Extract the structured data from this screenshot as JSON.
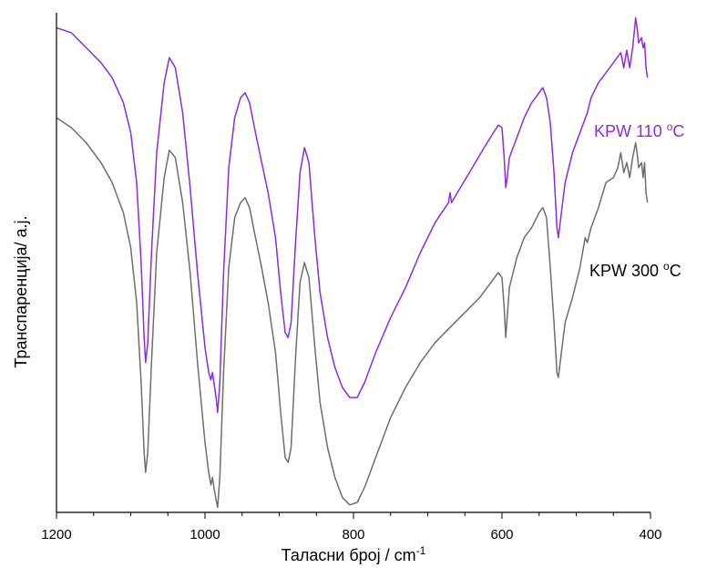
{
  "chart_data": {
    "type": "line",
    "title": "",
    "xlabel": "Таласни број / cm",
    "xlabel_sup": "-1",
    "ylabel": "Транспаренција/ а.ј.",
    "xlim": [
      1200,
      400
    ],
    "x_reversed": true,
    "ylim": [
      0,
      100
    ],
    "y_ticks_shown": false,
    "grid": false,
    "x_ticks": [
      1200,
      1000,
      800,
      600,
      400
    ],
    "x_tick_labels": [
      "1200",
      "1000",
      "800",
      "600",
      "400"
    ],
    "series": [
      {
        "name": "KPW 110 ",
        "label_sup": "o",
        "label_suffix": "C",
        "color": "#8b2be2",
        "points": [
          [
            1200,
            97
          ],
          [
            1180,
            96
          ],
          [
            1160,
            93
          ],
          [
            1140,
            90
          ],
          [
            1125,
            87
          ],
          [
            1110,
            82
          ],
          [
            1100,
            76
          ],
          [
            1092,
            66
          ],
          [
            1086,
            50
          ],
          [
            1082,
            35
          ],
          [
            1080,
            30
          ],
          [
            1077,
            34
          ],
          [
            1072,
            52
          ],
          [
            1065,
            72
          ],
          [
            1055,
            86
          ],
          [
            1048,
            91
          ],
          [
            1040,
            89
          ],
          [
            1030,
            80
          ],
          [
            1020,
            65
          ],
          [
            1010,
            48
          ],
          [
            1000,
            33
          ],
          [
            995,
            28
          ],
          [
            992,
            26.5
          ],
          [
            990,
            28
          ],
          [
            988,
            26
          ],
          [
            985,
            23
          ],
          [
            983,
            20
          ],
          [
            980,
            26
          ],
          [
            975,
            48
          ],
          [
            968,
            69
          ],
          [
            960,
            79
          ],
          [
            952,
            83
          ],
          [
            946,
            84
          ],
          [
            940,
            82
          ],
          [
            932,
            76
          ],
          [
            925,
            71
          ],
          [
            915,
            64
          ],
          [
            905,
            55
          ],
          [
            898,
            44
          ],
          [
            892,
            36
          ],
          [
            888,
            35
          ],
          [
            884,
            38
          ],
          [
            878,
            54
          ],
          [
            872,
            68
          ],
          [
            866,
            73
          ],
          [
            860,
            70
          ],
          [
            852,
            55
          ],
          [
            845,
            44
          ],
          [
            835,
            35
          ],
          [
            825,
            29
          ],
          [
            815,
            25
          ],
          [
            805,
            23
          ],
          [
            795,
            23
          ],
          [
            785,
            26
          ],
          [
            770,
            32
          ],
          [
            750,
            39
          ],
          [
            730,
            45
          ],
          [
            710,
            52
          ],
          [
            690,
            58
          ],
          [
            672,
            62
          ],
          [
            670,
            64
          ],
          [
            668,
            62
          ],
          [
            660,
            64
          ],
          [
            640,
            69
          ],
          [
            620,
            74
          ],
          [
            605,
            77.5
          ],
          [
            600,
            77
          ],
          [
            597,
            71
          ],
          [
            595,
            65
          ],
          [
            593,
            67
          ],
          [
            590,
            71
          ],
          [
            580,
            75
          ],
          [
            570,
            79
          ],
          [
            560,
            82
          ],
          [
            550,
            84
          ],
          [
            545,
            85
          ],
          [
            540,
            83
          ],
          [
            535,
            78
          ],
          [
            530,
            68
          ],
          [
            526,
            57
          ],
          [
            524,
            55
          ],
          [
            520,
            60
          ],
          [
            515,
            66
          ],
          [
            505,
            72
          ],
          [
            495,
            76
          ],
          [
            485,
            80
          ],
          [
            480,
            83
          ],
          [
            470,
            86
          ],
          [
            460,
            88
          ],
          [
            450,
            90
          ],
          [
            445,
            91
          ],
          [
            440,
            92
          ],
          [
            436,
            89
          ],
          [
            432,
            92.5
          ],
          [
            428,
            89
          ],
          [
            424,
            93
          ],
          [
            422,
            96
          ],
          [
            420,
            99
          ],
          [
            418,
            97
          ],
          [
            416,
            94
          ],
          [
            412,
            95
          ],
          [
            410,
            93
          ],
          [
            408,
            94
          ],
          [
            406,
            89
          ],
          [
            404,
            87
          ]
        ]
      },
      {
        "name": "KPW 300 ",
        "label_sup": "o",
        "label_suffix": "C",
        "color": "#6e6e6e",
        "points": [
          [
            1200,
            79
          ],
          [
            1180,
            77
          ],
          [
            1160,
            74
          ],
          [
            1140,
            70
          ],
          [
            1125,
            66
          ],
          [
            1110,
            60
          ],
          [
            1100,
            53
          ],
          [
            1092,
            42
          ],
          [
            1086,
            26
          ],
          [
            1082,
            12
          ],
          [
            1080,
            8
          ],
          [
            1077,
            12
          ],
          [
            1072,
            30
          ],
          [
            1065,
            52
          ],
          [
            1055,
            67
          ],
          [
            1048,
            72.5
          ],
          [
            1040,
            71
          ],
          [
            1030,
            62
          ],
          [
            1020,
            48
          ],
          [
            1010,
            30
          ],
          [
            1000,
            14
          ],
          [
            995,
            8
          ],
          [
            992,
            5.5
          ],
          [
            990,
            7
          ],
          [
            988,
            5
          ],
          [
            985,
            2.5
          ],
          [
            983,
            1
          ],
          [
            980,
            7
          ],
          [
            975,
            28
          ],
          [
            968,
            49
          ],
          [
            960,
            59
          ],
          [
            952,
            62
          ],
          [
            946,
            63
          ],
          [
            940,
            61
          ],
          [
            932,
            55
          ],
          [
            925,
            50
          ],
          [
            915,
            42
          ],
          [
            905,
            32
          ],
          [
            898,
            20
          ],
          [
            892,
            11
          ],
          [
            888,
            10
          ],
          [
            884,
            13
          ],
          [
            878,
            31
          ],
          [
            872,
            46
          ],
          [
            866,
            50
          ],
          [
            860,
            47
          ],
          [
            852,
            33
          ],
          [
            845,
            22
          ],
          [
            835,
            13
          ],
          [
            825,
            7
          ],
          [
            815,
            3
          ],
          [
            805,
            1.5
          ],
          [
            795,
            2
          ],
          [
            785,
            5
          ],
          [
            770,
            11
          ],
          [
            750,
            19
          ],
          [
            730,
            25
          ],
          [
            710,
            30
          ],
          [
            690,
            34
          ],
          [
            670,
            37
          ],
          [
            650,
            40
          ],
          [
            630,
            43
          ],
          [
            615,
            46
          ],
          [
            605,
            48
          ],
          [
            600,
            47
          ],
          [
            597,
            41
          ],
          [
            595,
            35
          ],
          [
            593,
            39
          ],
          [
            590,
            45
          ],
          [
            580,
            51
          ],
          [
            570,
            55
          ],
          [
            560,
            57
          ],
          [
            550,
            60
          ],
          [
            545,
            61
          ],
          [
            540,
            59
          ],
          [
            535,
            49
          ],
          [
            530,
            38
          ],
          [
            526,
            28
          ],
          [
            524,
            27
          ],
          [
            520,
            32
          ],
          [
            515,
            38
          ],
          [
            505,
            43
          ],
          [
            495,
            49
          ],
          [
            488,
            55
          ],
          [
            485,
            54
          ],
          [
            480,
            57
          ],
          [
            470,
            61
          ],
          [
            460,
            66
          ],
          [
            450,
            67
          ],
          [
            444,
            69
          ],
          [
            440,
            72
          ],
          [
            436,
            68
          ],
          [
            432,
            70
          ],
          [
            428,
            67
          ],
          [
            424,
            71
          ],
          [
            420,
            74
          ],
          [
            418,
            72
          ],
          [
            416,
            69
          ],
          [
            412,
            70
          ],
          [
            410,
            67
          ],
          [
            408,
            70
          ],
          [
            406,
            64
          ],
          [
            404,
            62
          ]
        ]
      }
    ]
  }
}
